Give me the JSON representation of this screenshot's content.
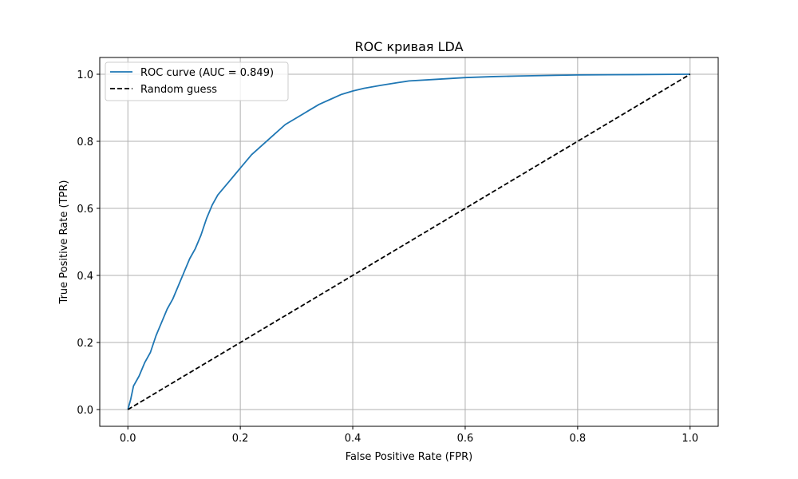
{
  "chart_data": {
    "type": "line",
    "title": "ROC кривая LDA",
    "xlabel": "False Positive Rate (FPR)",
    "ylabel": "True Positive Rate (TPR)",
    "xlim": [
      -0.05,
      1.05
    ],
    "ylim": [
      -0.05,
      1.05
    ],
    "xticks": [
      "0.0",
      "0.2",
      "0.4",
      "0.6",
      "0.8",
      "1.0"
    ],
    "yticks": [
      "0.0",
      "0.2",
      "0.4",
      "0.6",
      "0.8",
      "1.0"
    ],
    "grid": true,
    "legend_position": "upper-left",
    "series": [
      {
        "name": "ROC curve (AUC = 0.849)",
        "color": "#1f77b4",
        "style": "solid",
        "points": [
          [
            0.0,
            0.0
          ],
          [
            0.005,
            0.03
          ],
          [
            0.01,
            0.07
          ],
          [
            0.02,
            0.1
          ],
          [
            0.03,
            0.14
          ],
          [
            0.04,
            0.17
          ],
          [
            0.05,
            0.22
          ],
          [
            0.06,
            0.26
          ],
          [
            0.07,
            0.3
          ],
          [
            0.08,
            0.33
          ],
          [
            0.09,
            0.37
          ],
          [
            0.1,
            0.41
          ],
          [
            0.11,
            0.45
          ],
          [
            0.12,
            0.48
          ],
          [
            0.13,
            0.52
          ],
          [
            0.14,
            0.57
          ],
          [
            0.15,
            0.61
          ],
          [
            0.16,
            0.64
          ],
          [
            0.17,
            0.66
          ],
          [
            0.18,
            0.68
          ],
          [
            0.19,
            0.7
          ],
          [
            0.2,
            0.72
          ],
          [
            0.21,
            0.74
          ],
          [
            0.22,
            0.76
          ],
          [
            0.24,
            0.79
          ],
          [
            0.26,
            0.82
          ],
          [
            0.28,
            0.85
          ],
          [
            0.3,
            0.87
          ],
          [
            0.32,
            0.89
          ],
          [
            0.34,
            0.91
          ],
          [
            0.36,
            0.925
          ],
          [
            0.38,
            0.94
          ],
          [
            0.4,
            0.95
          ],
          [
            0.42,
            0.958
          ],
          [
            0.45,
            0.967
          ],
          [
            0.48,
            0.975
          ],
          [
            0.5,
            0.98
          ],
          [
            0.55,
            0.985
          ],
          [
            0.6,
            0.99
          ],
          [
            0.65,
            0.993
          ],
          [
            0.7,
            0.995
          ],
          [
            0.8,
            0.998
          ],
          [
            0.9,
            0.999
          ],
          [
            1.0,
            1.0
          ]
        ]
      },
      {
        "name": "Random guess",
        "color": "#000000",
        "style": "dashed",
        "points": [
          [
            0.0,
            0.0
          ],
          [
            1.0,
            1.0
          ]
        ]
      }
    ]
  }
}
